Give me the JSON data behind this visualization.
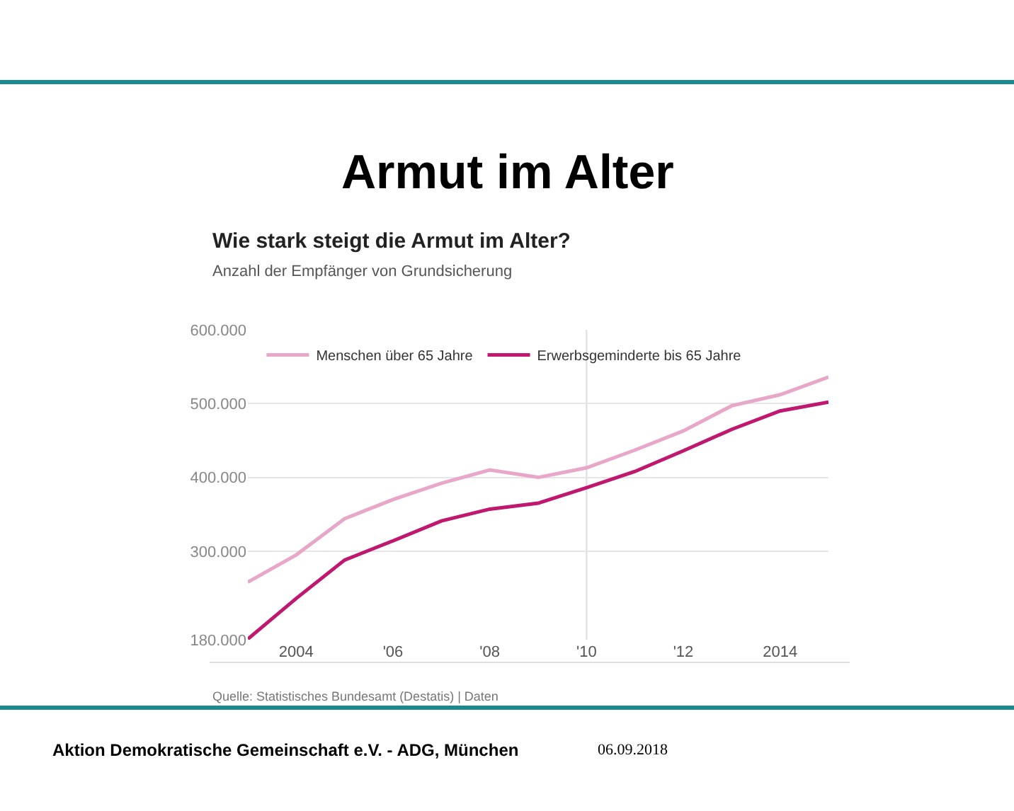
{
  "chart_data": {
    "type": "line",
    "title": "Wie stark steigt die Armut im Alter?",
    "subtitle": "Anzahl der Empfänger von Grundsicherung",
    "annotations": [
      "Armut im Alter",
      "Quelle: Statistisches Bundesamt (Destatis) | Daten",
      "Aktion Demokratische Gemeinschaft e.V. - ADG, München",
      "06.09.2018"
    ],
    "x": [
      2003,
      2004,
      2005,
      2006,
      2007,
      2008,
      2009,
      2010,
      2011,
      2012,
      2013,
      2014,
      2015
    ],
    "series": [
      {
        "name": "Menschen über 65 Jahre",
        "color": "#e8a6c8",
        "values": [
          258000,
          295000,
          344000,
          370000,
          392000,
          410000,
          400000,
          413000,
          437000,
          463000,
          497000,
          512000,
          536000
        ]
      },
      {
        "name": "Erwerbsgeminderte bis 65 Jahre",
        "color": "#c0186e",
        "values": [
          181000,
          236000,
          288000,
          314000,
          341000,
          357000,
          365000,
          386000,
          408000,
          436000,
          465000,
          490000,
          502000
        ]
      }
    ],
    "xlim": [
      2003,
      2015
    ],
    "xticks": [
      2004,
      {
        "value": 2006,
        "label": "'06"
      },
      {
        "value": 2008,
        "label": "'08"
      },
      {
        "value": 2010,
        "label": "'10"
      },
      {
        "value": 2012,
        "label": "'12"
      },
      2014
    ],
    "ylim": [
      180000,
      600000
    ],
    "yticks": [
      {
        "value": 180000,
        "label": "180.000"
      },
      {
        "value": 300000,
        "label": "300.000"
      },
      {
        "value": 400000,
        "label": "400.000"
      },
      {
        "value": 500000,
        "label": "500.000"
      },
      {
        "value": 600000,
        "label": "600.000"
      }
    ],
    "ref_lines": [
      {
        "axis": "x",
        "value": 2010,
        "color": "#dddddd"
      }
    ],
    "grid": "y",
    "legend": "top left",
    "marker": "none",
    "line_style": "solid"
  }
}
